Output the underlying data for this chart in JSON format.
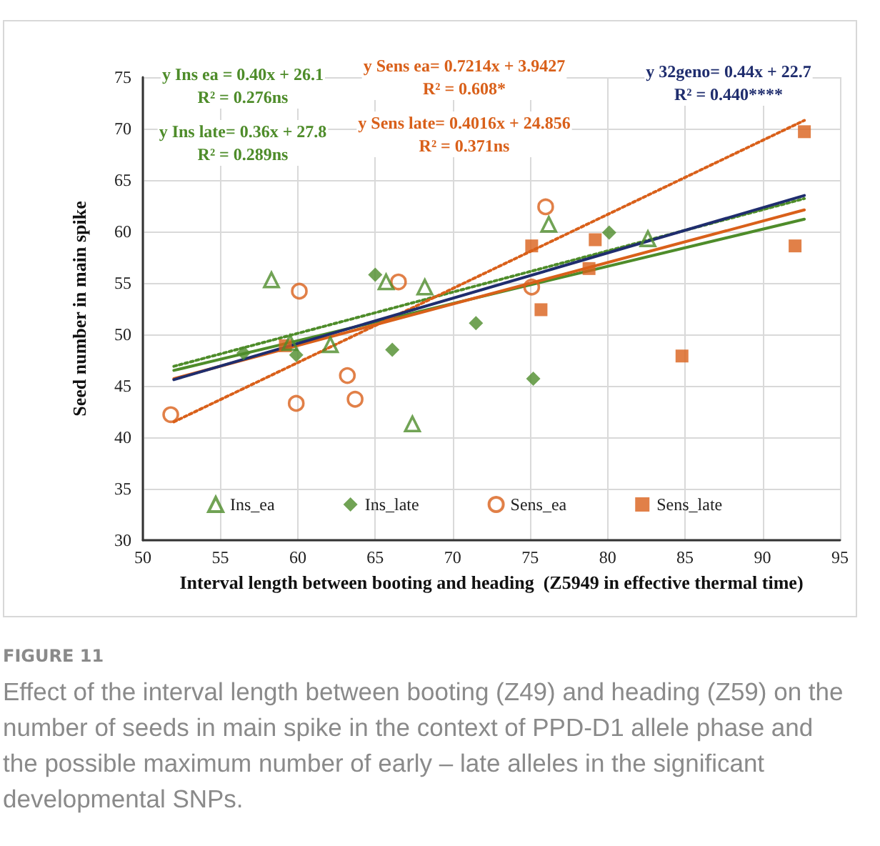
{
  "chart_data": {
    "type": "scatter",
    "xlabel": "Interval length between booting and heading  (Z5949 in effective thermal time)",
    "ylabel": "Seed number in main spike",
    "xlim": [
      50,
      95
    ],
    "xticks": [
      50,
      55,
      60,
      65,
      70,
      75,
      80,
      85,
      90,
      95
    ],
    "ylim": [
      30,
      75
    ],
    "yticks": [
      30,
      35,
      40,
      45,
      50,
      55,
      60,
      65,
      70,
      75
    ],
    "grid": true,
    "legend": "bottom",
    "series": [
      {
        "name": "Ins_ea",
        "marker": "triangle",
        "color": "#4e8c2a",
        "x": [
          58.3,
          59.5,
          62.1,
          65.7,
          68.2,
          67.4,
          76.2,
          82.6
        ],
        "values": [
          55.3,
          49.2,
          49.0,
          55.1,
          54.6,
          41.3,
          60.7,
          59.3
        ]
      },
      {
        "name": "Ins_late",
        "marker": "diamond",
        "color": "#4e8c2a",
        "x": [
          56.5,
          59.9,
          65.0,
          66.1,
          71.5,
          75.2,
          80.1
        ],
        "values": [
          48.2,
          48.0,
          55.8,
          48.5,
          51.1,
          45.7,
          59.9
        ]
      },
      {
        "name": "Sens_ea",
        "marker": "circle",
        "color": "#d9601a",
        "x": [
          51.8,
          60.1,
          59.9,
          63.2,
          63.7,
          66.5,
          76.0,
          75.1
        ],
        "values": [
          42.2,
          54.2,
          43.3,
          46.0,
          43.7,
          55.1,
          62.4,
          54.6
        ]
      },
      {
        "name": "Sens_late",
        "marker": "square",
        "color": "#d9601a",
        "x": [
          59.2,
          75.1,
          79.2,
          78.8,
          75.7,
          84.8,
          92.7,
          92.1
        ],
        "values": [
          48.9,
          58.6,
          59.2,
          56.4,
          52.4,
          47.9,
          69.7,
          58.6
        ]
      },
      {
        "type": "line",
        "line_style": "dotted",
        "marker": "none",
        "color": "#4e8c2a",
        "x": [
          52,
          92.7
        ],
        "values": [
          46.9,
          63.2
        ]
      },
      {
        "type": "line",
        "line_style": "solid",
        "marker": "none",
        "color": "#4e8c2a",
        "x": [
          52,
          92.7
        ],
        "values": [
          46.5,
          61.2
        ]
      },
      {
        "type": "line",
        "line_style": "dotted",
        "marker": "none",
        "color": "#d9601a",
        "x": [
          52,
          92.7
        ],
        "values": [
          41.5,
          70.8
        ]
      },
      {
        "type": "line",
        "line_style": "solid",
        "marker": "none",
        "color": "#d9601a",
        "x": [
          52,
          92.7
        ],
        "values": [
          45.7,
          62.1
        ]
      },
      {
        "type": "line",
        "line_style": "solid",
        "marker": "none",
        "color": "#1f2d6e",
        "x": [
          52,
          92.7
        ],
        "values": [
          45.6,
          63.5
        ]
      }
    ],
    "annotations": [
      "y Ins ea = 0.40x + 26.1\nR² = 0.276ns",
      "y Ins late= 0.36x + 27.8\nR² = 0.289ns",
      "y Sens ea= 0.7214x + 3.9427\nR² = 0.608*",
      "y Sens late= 0.4016x + 24.856\nR² = 0.371ns",
      "y 32geno= 0.44x + 22.7\nR² = 0.440****",
      "FIGURE 11",
      "Effect of the interval length between booting (Z49) and heading (Z59) on the number of seeds in main spike in the context of PPD-D1 allele phase and the possible maximum number of early – late alleles in the significant developmental SNPs."
    ]
  }
}
